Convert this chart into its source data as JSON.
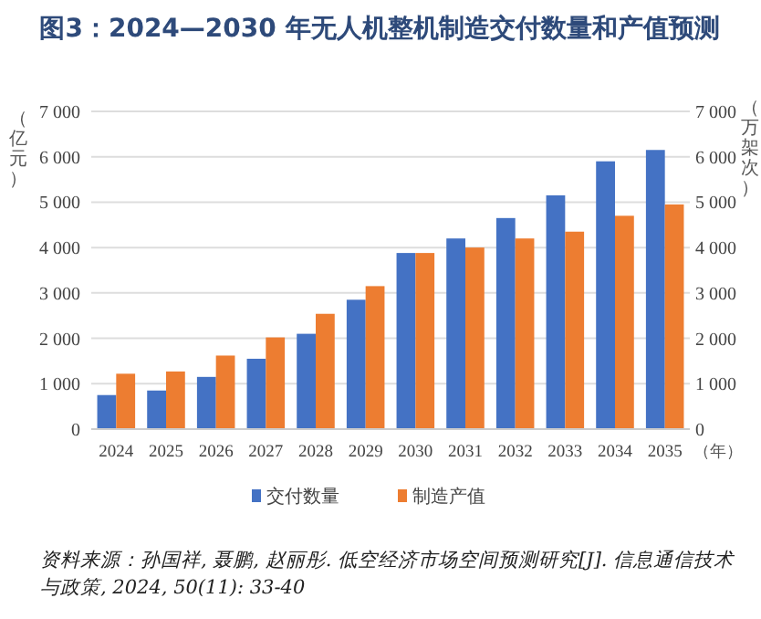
{
  "chart_data": {
    "type": "bar",
    "title": "图3：2024—2030 年无人机整机制造交付数量和产值预测",
    "ylabel": "（亿元）",
    "y2label": "（万架次）",
    "xlabel": "（年）",
    "categories": [
      "2024",
      "2025",
      "2026",
      "2027",
      "2028",
      "2029",
      "2030",
      "2031",
      "2032",
      "2033",
      "2034",
      "2035"
    ],
    "series": [
      {
        "name": "交付数量",
        "color": "#4472c4",
        "values": [
          750,
          850,
          1150,
          1550,
          2100,
          2850,
          3880,
          4200,
          4650,
          5150,
          5900,
          6150
        ]
      },
      {
        "name": "制造产值",
        "color": "#ed7d31",
        "values": [
          1220,
          1270,
          1620,
          2020,
          2540,
          3150,
          3880,
          4000,
          4200,
          4350,
          4700,
          4950
        ]
      }
    ],
    "ylim": [
      0,
      7000
    ],
    "yticks": [
      0,
      {
        "value": 1000,
        "label": "1 000"
      },
      {
        "value": 2000,
        "label": "2 000"
      },
      {
        "value": 3000,
        "label": "3 000"
      },
      {
        "value": 4000,
        "label": "4 000"
      },
      {
        "value": 5000,
        "label": "5 000"
      },
      {
        "value": 6000,
        "label": "6 000"
      },
      {
        "value": 7000,
        "label": "7 000"
      }
    ],
    "y2lim": [
      0,
      7000
    ],
    "y2ticks": [
      0,
      {
        "value": 1000,
        "label": "1 000"
      },
      {
        "value": 2000,
        "label": "2 000"
      },
      {
        "value": 3000,
        "label": "3 000"
      },
      {
        "value": 4000,
        "label": "4 000"
      },
      {
        "value": 5000,
        "label": "5 000"
      },
      {
        "value": 6000,
        "label": "6 000"
      },
      {
        "value": 7000,
        "label": "7 000"
      }
    ],
    "grid": "y",
    "legend": "bottom",
    "annotations": [
      "资料来源：孙国祥, 聂鹏, 赵丽彤. 低空经济市场空间预测研究[J]. 信息通信技术与政策, 2024, 50(11): 33-40"
    ]
  }
}
